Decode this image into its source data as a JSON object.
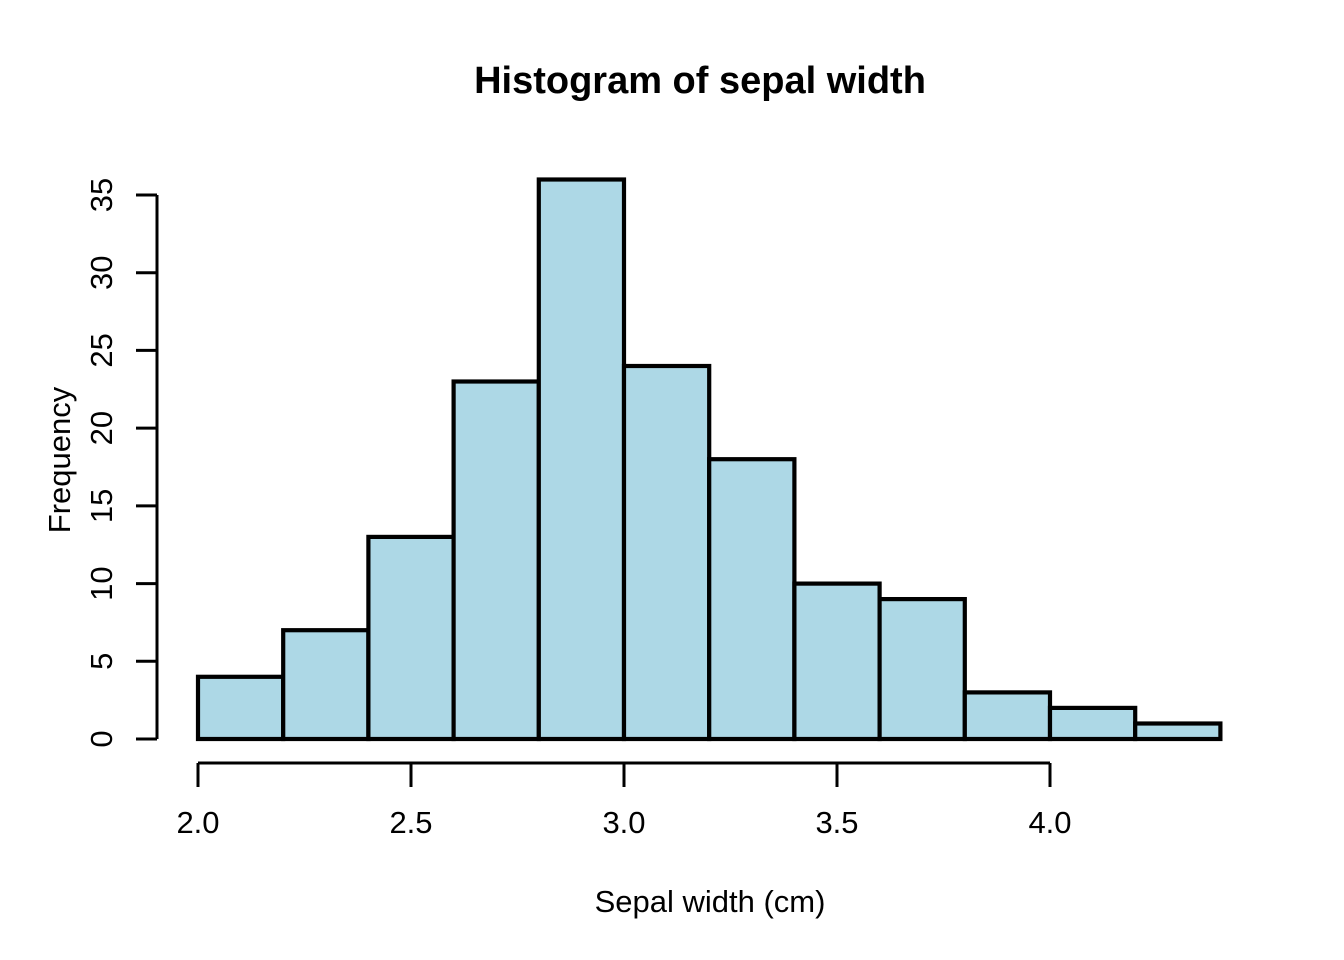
{
  "page": {
    "background": "#FFFFFF"
  },
  "chart_data": {
    "type": "bar",
    "subtype": "histogram",
    "title": "Histogram of sepal width",
    "xlabel": "Sepal width (cm)",
    "ylabel": "Frequency",
    "bins": {
      "start": 2.0,
      "width": 0.2,
      "end": 4.4
    },
    "bin_edges": [
      2.0,
      2.2,
      2.4,
      2.6,
      2.8,
      3.0,
      3.2,
      3.4,
      3.6,
      3.8,
      4.0,
      4.2,
      4.4
    ],
    "counts": [
      4,
      7,
      13,
      23,
      36,
      24,
      18,
      10,
      9,
      3,
      2,
      1
    ],
    "x_ticks": [
      2.0,
      2.5,
      3.0,
      3.5,
      4.0
    ],
    "x_tick_labels": [
      "2.0",
      "2.5",
      "3.0",
      "3.5",
      "4.0"
    ],
    "y_ticks": [
      0,
      5,
      10,
      15,
      20,
      25,
      30,
      35
    ],
    "y_tick_labels": [
      "0",
      "5",
      "10",
      "15",
      "20",
      "25",
      "30",
      "35"
    ],
    "xlim": [
      2.0,
      4.4
    ],
    "ylim": [
      0,
      36
    ],
    "grid": false,
    "legend": null,
    "colors": {
      "bar_fill": "#ADD8E6",
      "bar_stroke": "#000000",
      "axis": "#000000",
      "text": "#000000",
      "background": "#FFFFFF"
    }
  }
}
